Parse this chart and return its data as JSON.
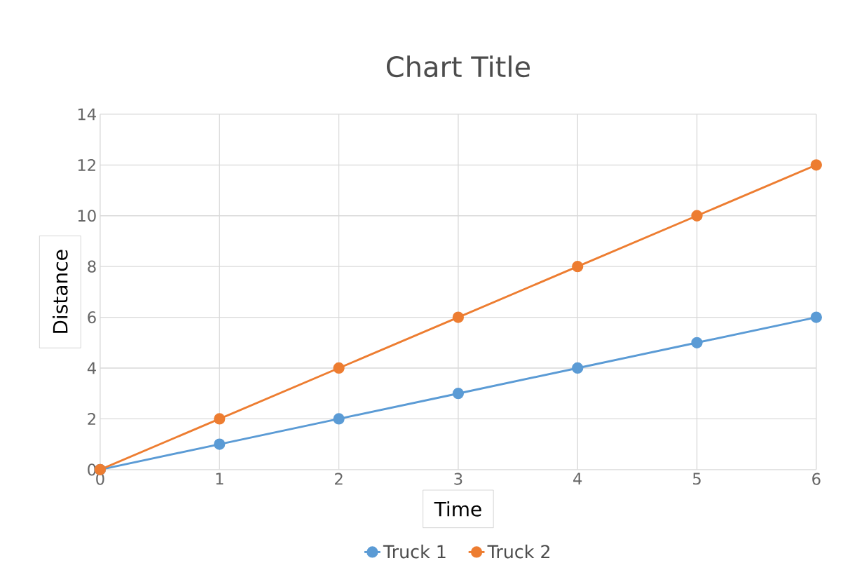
{
  "chart_data": {
    "type": "line",
    "title": "Chart Title",
    "xlabel": "Time",
    "ylabel": "Distance",
    "x": [
      0,
      1,
      2,
      3,
      4,
      5,
      6
    ],
    "series": [
      {
        "name": "Truck 1",
        "color": "#5b9bd5",
        "values": [
          0,
          1,
          2,
          3,
          4,
          5,
          6
        ]
      },
      {
        "name": "Truck 2",
        "color": "#ed7d31",
        "values": [
          0,
          2,
          4,
          6,
          8,
          10,
          12
        ]
      }
    ],
    "xlim": [
      0,
      6
    ],
    "ylim": [
      0,
      14
    ],
    "xticks": [
      0,
      1,
      2,
      3,
      4,
      5,
      6
    ],
    "yticks": [
      0,
      2,
      4,
      6,
      8,
      10,
      12,
      14
    ],
    "grid": true,
    "legend": "bottom",
    "marker": "circle",
    "line_style": "solid"
  }
}
